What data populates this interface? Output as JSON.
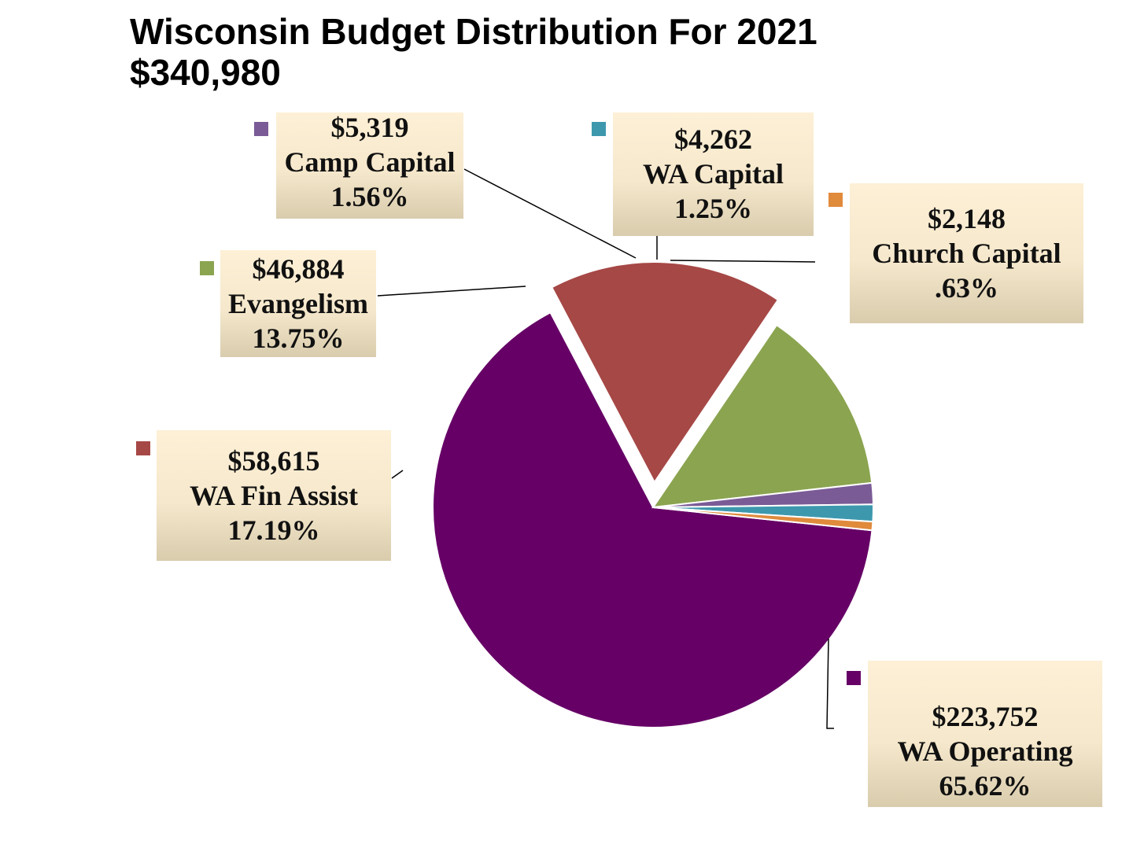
{
  "title": "Wisconsin Budget Distribution For 2021",
  "subtitle": "$340,980",
  "chart_data": {
    "type": "pie",
    "title": "Wisconsin Budget Distribution For 2021",
    "subtitle": "$340,980",
    "total": 340980,
    "slices": [
      {
        "name": "WA Operating",
        "value": 223752,
        "amount_label": "$223,752",
        "percent_label": "65.62%",
        "color": "#660066"
      },
      {
        "name": "WA Fin Assist",
        "value": 58615,
        "amount_label": "$58,615",
        "percent_label": "17.19%",
        "color": "#a64846"
      },
      {
        "name": "Evangelism",
        "value": 46884,
        "amount_label": "$46,884",
        "percent_label": "13.75%",
        "color": "#8ba450"
      },
      {
        "name": "Camp Capital",
        "value": 5319,
        "amount_label": "$5,319",
        "percent_label": "1.56%",
        "color": "#7a5b96"
      },
      {
        "name": "WA Capital",
        "value": 4262,
        "amount_label": "$4,262",
        "percent_label": "1.25%",
        "color": "#3d98ad"
      },
      {
        "name": "Church Capital",
        "value": 2148,
        "amount_label": "$2,148",
        "percent_label": ".63%",
        "color": "#e08a3c"
      }
    ],
    "exploded": [
      "WA Fin Assist"
    ],
    "legend": "none",
    "data_labels": "callout boxes with value, name and percent"
  }
}
